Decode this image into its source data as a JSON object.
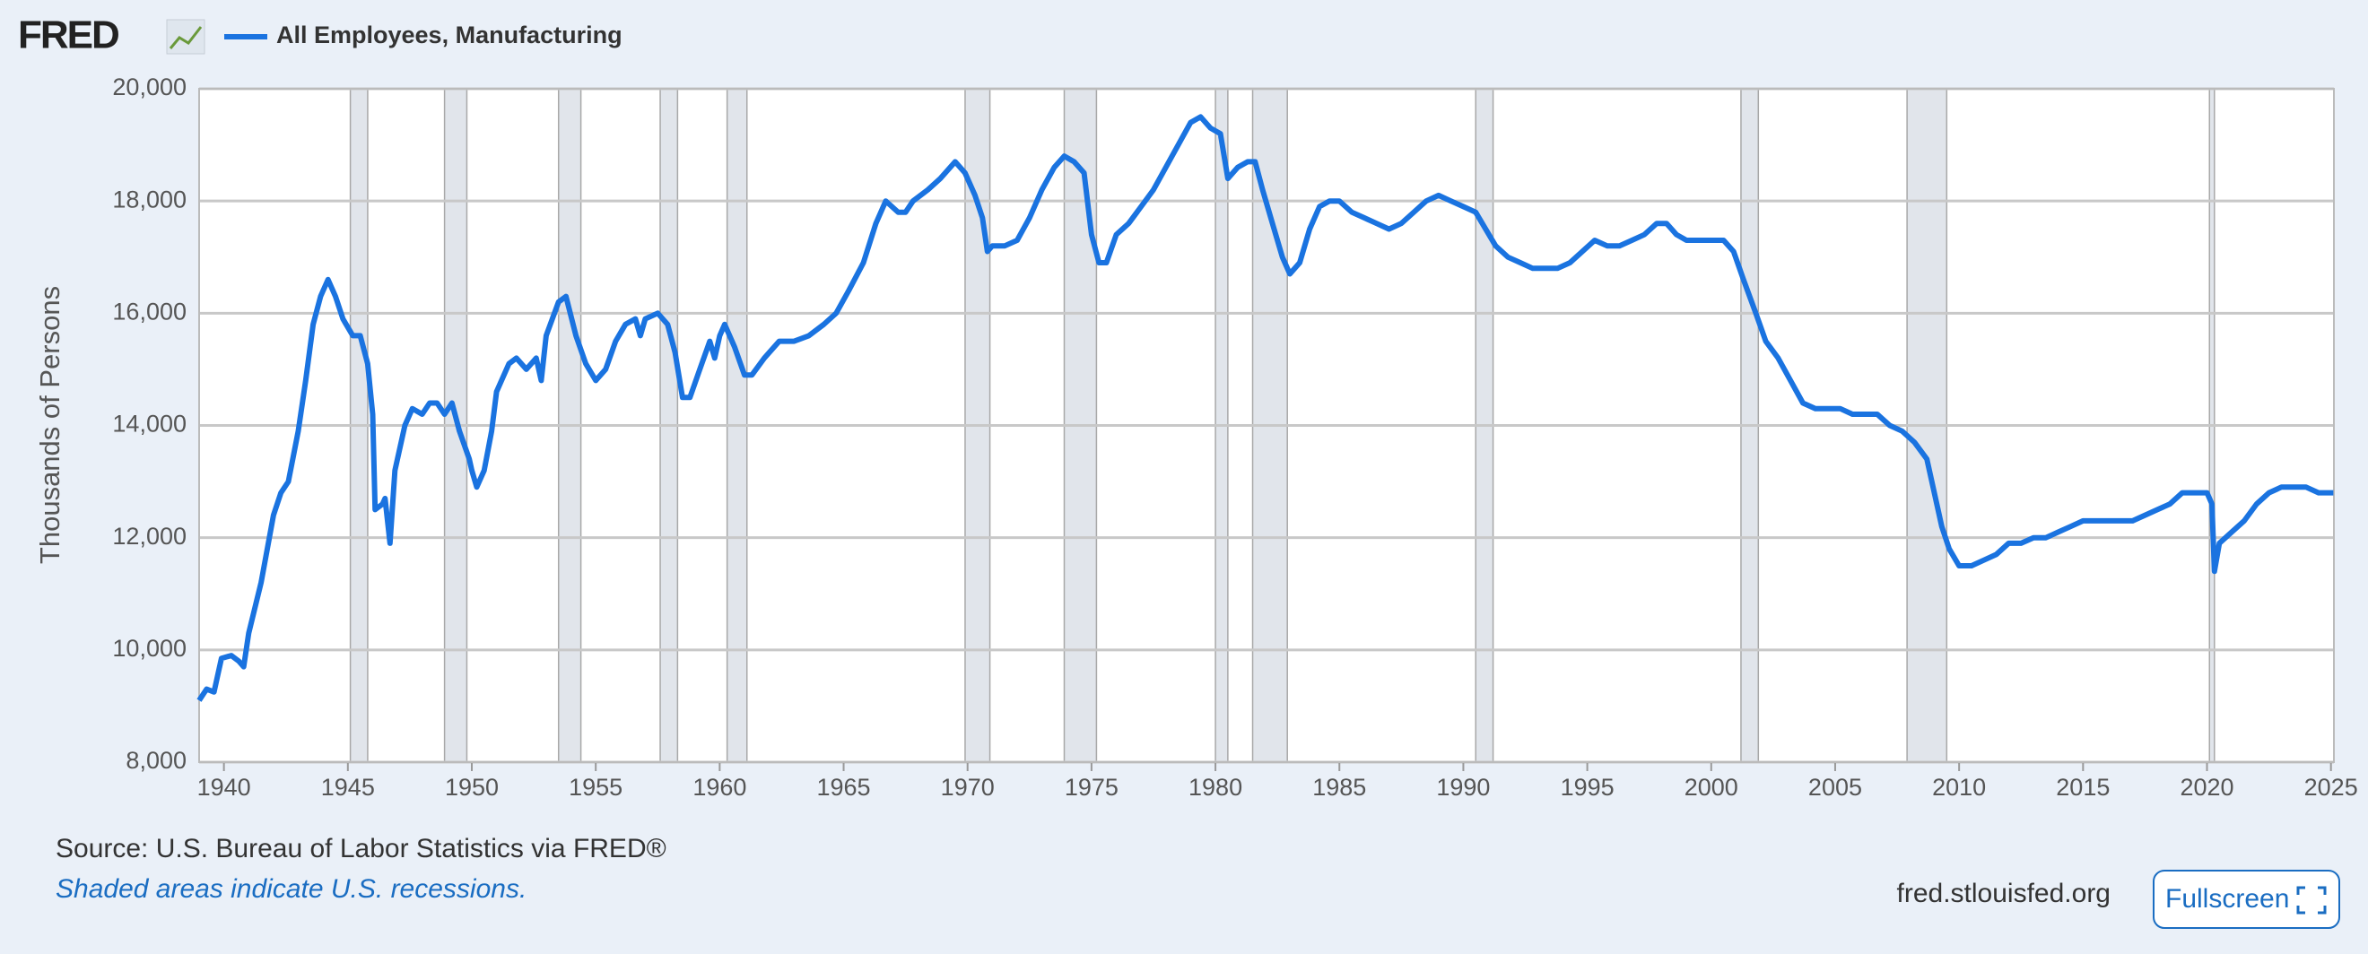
{
  "logo": "FRED",
  "source": "Source: U.S. Bureau of Labor Statistics via FRED®",
  "note": "Shaded areas indicate U.S. recessions.",
  "site": "fred.stlouisfed.org",
  "fullscreen": "Fullscreen",
  "chart_data": {
    "type": "line",
    "y_label": "Thousands of Persons",
    "xlim": [
      1939.0,
      2025.12
    ],
    "xticks": [
      1940,
      1945,
      1950,
      1955,
      1960,
      1965,
      1970,
      1975,
      1980,
      1985,
      1990,
      1995,
      2000,
      2005,
      2010,
      2015,
      2020,
      2025
    ],
    "ylim": [
      8000,
      20000
    ],
    "yticks": [
      {
        "value": 8000,
        "label": "8,000"
      },
      {
        "value": 10000,
        "label": "10,000"
      },
      {
        "value": 12000,
        "label": "12,000"
      },
      {
        "value": 14000,
        "label": "14,000"
      },
      {
        "value": 16000,
        "label": "16,000"
      },
      {
        "value": 18000,
        "label": "18,000"
      },
      {
        "value": 20000,
        "label": "20,000"
      }
    ],
    "grid": true,
    "recessions": [
      [
        1945.1,
        1945.8
      ],
      [
        1948.9,
        1949.8
      ],
      [
        1953.5,
        1954.4
      ],
      [
        1957.6,
        1958.3
      ],
      [
        1960.3,
        1961.1
      ],
      [
        1969.9,
        1970.9
      ],
      [
        1973.9,
        1975.2
      ],
      [
        1980.0,
        1980.5
      ],
      [
        1981.5,
        1982.9
      ],
      [
        1990.5,
        1991.2
      ],
      [
        2001.2,
        2001.9
      ],
      [
        2007.9,
        2009.5
      ],
      [
        2020.1,
        2020.3
      ]
    ],
    "x": [
      1939.0,
      1939.3,
      1939.6,
      1939.9,
      1940.3,
      1940.6,
      1940.8,
      1941.0,
      1941.5,
      1942.0,
      1942.3,
      1942.6,
      1943.0,
      1943.3,
      1943.6,
      1943.9,
      1944.2,
      1944.5,
      1944.8,
      1945.2,
      1945.5,
      1945.8,
      1946.0,
      1946.1,
      1946.4,
      1946.5,
      1946.7,
      1946.9,
      1947.3,
      1947.6,
      1948.0,
      1948.3,
      1948.6,
      1948.9,
      1949.2,
      1949.5,
      1949.9,
      1950.0,
      1950.2,
      1950.5,
      1950.8,
      1951.0,
      1951.5,
      1951.8,
      1952.2,
      1952.6,
      1952.8,
      1953.0,
      1953.5,
      1953.8,
      1954.2,
      1954.6,
      1955.0,
      1955.4,
      1955.8,
      1956.2,
      1956.6,
      1956.8,
      1957.0,
      1957.5,
      1957.9,
      1958.2,
      1958.5,
      1958.8,
      1959.2,
      1959.6,
      1959.8,
      1960.0,
      1960.2,
      1960.6,
      1961.0,
      1961.3,
      1961.8,
      1962.4,
      1963.0,
      1963.6,
      1964.2,
      1964.7,
      1965.2,
      1965.8,
      1966.3,
      1966.7,
      1967.2,
      1967.5,
      1967.8,
      1968.4,
      1968.9,
      1969.5,
      1969.9,
      1970.3,
      1970.6,
      1970.8,
      1971.0,
      1971.5,
      1972.0,
      1972.5,
      1973.0,
      1973.5,
      1973.9,
      1974.3,
      1974.7,
      1975.0,
      1975.3,
      1975.6,
      1976.0,
      1976.5,
      1977.0,
      1977.5,
      1978.0,
      1978.5,
      1979.0,
      1979.4,
      1979.8,
      1980.2,
      1980.5,
      1980.9,
      1981.3,
      1981.6,
      1981.9,
      1982.3,
      1982.7,
      1983.0,
      1983.4,
      1983.8,
      1984.2,
      1984.6,
      1985.0,
      1985.5,
      1986.0,
      1986.5,
      1987.0,
      1987.5,
      1988.0,
      1988.5,
      1989.0,
      1989.5,
      1990.0,
      1990.5,
      1990.9,
      1991.3,
      1991.8,
      1992.3,
      1992.8,
      1993.3,
      1993.8,
      1994.3,
      1994.8,
      1995.3,
      1995.8,
      1996.3,
      1996.8,
      1997.3,
      1997.8,
      1998.2,
      1998.6,
      1999.0,
      1999.5,
      2000.0,
      2000.5,
      2000.9,
      2001.3,
      2001.8,
      2002.2,
      2002.7,
      2003.2,
      2003.7,
      2004.2,
      2004.7,
      2005.2,
      2005.7,
      2006.2,
      2006.7,
      2007.2,
      2007.7,
      2008.2,
      2008.7,
      2009.0,
      2009.3,
      2009.6,
      2010.0,
      2010.5,
      2011.0,
      2011.5,
      2012.0,
      2012.5,
      2013.0,
      2013.5,
      2014.0,
      2014.5,
      2015.0,
      2015.5,
      2016.0,
      2016.5,
      2017.0,
      2017.5,
      2018.0,
      2018.5,
      2019.0,
      2019.5,
      2020.0,
      2020.2,
      2020.3,
      2020.5,
      2021.0,
      2021.5,
      2022.0,
      2022.5,
      2023.0,
      2023.5,
      2024.0,
      2024.5,
      2025.1
    ],
    "series": [
      {
        "name": "All Employees, Manufacturing",
        "color": "#1a73e0",
        "values": [
          9100,
          9300,
          9250,
          9850,
          9900,
          9800,
          9700,
          10300,
          11200,
          12400,
          12800,
          13000,
          13900,
          14800,
          15800,
          16300,
          16600,
          16300,
          15900,
          15600,
          15600,
          15100,
          14200,
          12500,
          12600,
          12700,
          11900,
          13200,
          14000,
          14300,
          14200,
          14400,
          14400,
          14200,
          14400,
          13900,
          13400,
          13200,
          12900,
          13200,
          13900,
          14600,
          15100,
          15200,
          15000,
          15200,
          14800,
          15600,
          16200,
          16300,
          15600,
          15100,
          14800,
          15000,
          15500,
          15800,
          15900,
          15600,
          15900,
          16000,
          15800,
          15300,
          14500,
          14500,
          15000,
          15500,
          15200,
          15600,
          15800,
          15400,
          14900,
          14900,
          15200,
          15500,
          15500,
          15600,
          15800,
          16000,
          16400,
          16900,
          17600,
          18000,
          17800,
          17800,
          18000,
          18200,
          18400,
          18700,
          18500,
          18100,
          17700,
          17100,
          17200,
          17200,
          17300,
          17700,
          18200,
          18600,
          18800,
          18700,
          18500,
          17400,
          16900,
          16900,
          17400,
          17600,
          17900,
          18200,
          18600,
          19000,
          19400,
          19500,
          19300,
          19200,
          18400,
          18600,
          18700,
          18700,
          18200,
          17600,
          17000,
          16700,
          16900,
          17500,
          17900,
          18000,
          18000,
          17800,
          17700,
          17600,
          17500,
          17600,
          17800,
          18000,
          18100,
          18000,
          17900,
          17800,
          17500,
          17200,
          17000,
          16900,
          16800,
          16800,
          16800,
          16900,
          17100,
          17300,
          17200,
          17200,
          17300,
          17400,
          17600,
          17600,
          17400,
          17300,
          17300,
          17300,
          17300,
          17100,
          16600,
          16000,
          15500,
          15200,
          14800,
          14400,
          14300,
          14300,
          14300,
          14200,
          14200,
          14200,
          14000,
          13900,
          13700,
          13400,
          12800,
          12200,
          11800,
          11500,
          11500,
          11600,
          11700,
          11900,
          11900,
          12000,
          12000,
          12100,
          12200,
          12300,
          12300,
          12300,
          12300,
          12300,
          12400,
          12500,
          12600,
          12800,
          12800,
          12800,
          12600,
          11400,
          11900,
          12100,
          12300,
          12600,
          12800,
          12900,
          12900,
          12900,
          12800,
          12800
        ]
      }
    ]
  }
}
